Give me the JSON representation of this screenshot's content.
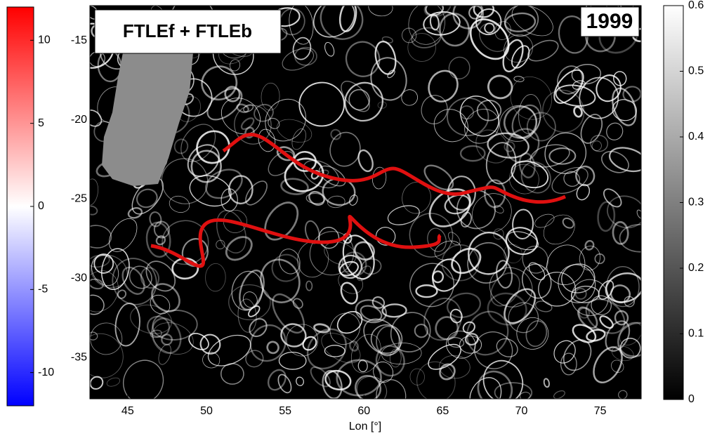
{
  "chart_data": {
    "type": "heatmap",
    "title": "FTLEf + FTLEb",
    "annotation": "1999",
    "xlabel": "Lon [°]",
    "xlim": [
      42.6,
      77.6
    ],
    "xticks": [
      45,
      50,
      55,
      60,
      65,
      70,
      75
    ],
    "ylim": [
      -37.6,
      -12.8
    ],
    "yticks": [
      -15,
      -20,
      -25,
      -30,
      -35
    ],
    "colorbars": [
      {
        "lim": [
          -12,
          12
        ],
        "ticks": [
          10,
          5,
          0,
          -5,
          -10
        ],
        "colors": [
          "#0000ff",
          "#ffffff",
          "#ff0000"
        ]
      },
      {
        "lim": [
          0,
          0.6
        ],
        "ticks": [
          0,
          0.1,
          0.2,
          0.3,
          0.4,
          0.5,
          0.6
        ],
        "colors": [
          "#000000",
          "#ffffff"
        ]
      }
    ]
  }
}
